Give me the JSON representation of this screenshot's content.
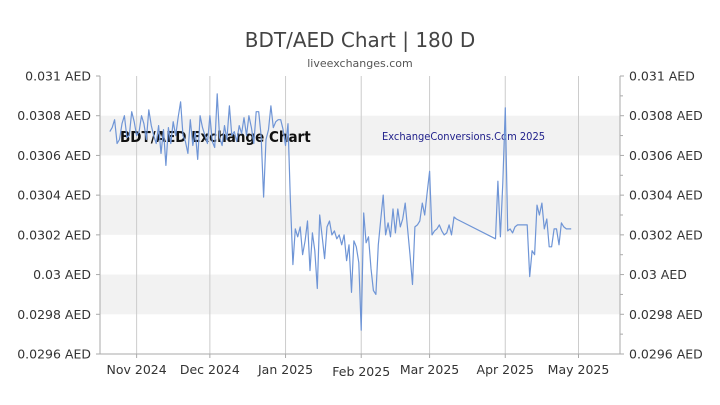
{
  "chart_data": {
    "type": "line",
    "title": "BDT/AED Chart | 180 D",
    "subtitle": "liveexchanges.com",
    "watermark_left": "BDT/AED Exchange Chart",
    "watermark_right": "ExchangeConversions.Com 2025",
    "ylim": [
      0.0296,
      0.031
    ],
    "y_ticks": [
      0.031,
      0.0308,
      0.0306,
      0.0304,
      0.0302,
      0.03,
      0.0298,
      0.0296
    ],
    "y_tick_labels": [
      "0.031 AED",
      "0.0308 AED",
      "0.0306 AED",
      "0.0304 AED",
      "0.0302 AED",
      "0.03 AED",
      "0.0298 AED",
      "0.0296 AED"
    ],
    "x_range": [
      "2024-10-17",
      "2025-05-18"
    ],
    "x_ticks": [
      {
        "label": "Nov 2024",
        "date": "2024-11-01"
      },
      {
        "label": "Dec 2024",
        "date": "2024-12-01"
      },
      {
        "label": "Jan 2025",
        "date": "2025-01-01"
      },
      {
        "label": "Feb 2025",
        "date": "2025-02-01"
      },
      {
        "label": "Mar 2025",
        "date": "2025-03-01"
      },
      {
        "label": "Apr 2025",
        "date": "2025-04-01"
      },
      {
        "label": "May 2025",
        "date": "2025-05-01"
      }
    ],
    "grid": "horizontal alternating bands, vertical month lines",
    "colors": {
      "line": "#6f95d6",
      "band": "#f2f2f2",
      "grid": "#cccccc",
      "axis": "#aaaaaa"
    },
    "series": [
      {
        "values": [
          [
            "2024-10-21",
            0.03072
          ],
          [
            "2024-10-22",
            0.03074
          ],
          [
            "2024-10-23",
            0.03078
          ],
          [
            "2024-10-24",
            0.03066
          ],
          [
            "2024-10-25",
            0.03068
          ],
          [
            "2024-10-26",
            0.03076
          ],
          [
            "2024-10-27",
            0.0308
          ],
          [
            "2024-10-28",
            0.03069
          ],
          [
            "2024-10-29",
            0.0307
          ],
          [
            "2024-10-30",
            0.03082
          ],
          [
            "2024-10-31",
            0.03077
          ],
          [
            "2024-11-01",
            0.0307
          ],
          [
            "2024-11-02",
            0.03072
          ],
          [
            "2024-11-03",
            0.0308
          ],
          [
            "2024-11-04",
            0.03076
          ],
          [
            "2024-11-05",
            0.03068
          ],
          [
            "2024-11-06",
            0.03083
          ],
          [
            "2024-11-07",
            0.03075
          ],
          [
            "2024-11-08",
            0.0307
          ],
          [
            "2024-11-09",
            0.03066
          ],
          [
            "2024-11-10",
            0.03075
          ],
          [
            "2024-11-11",
            0.03061
          ],
          [
            "2024-11-12",
            0.03073
          ],
          [
            "2024-11-13",
            0.03055
          ],
          [
            "2024-11-14",
            0.03074
          ],
          [
            "2024-11-15",
            0.03066
          ],
          [
            "2024-11-16",
            0.03077
          ],
          [
            "2024-11-17",
            0.0307
          ],
          [
            "2024-11-18",
            0.03079
          ],
          [
            "2024-11-19",
            0.03087
          ],
          [
            "2024-11-20",
            0.0307
          ],
          [
            "2024-11-21",
            0.03067
          ],
          [
            "2024-11-22",
            0.03061
          ],
          [
            "2024-11-23",
            0.03078
          ],
          [
            "2024-11-24",
            0.03065
          ],
          [
            "2024-11-25",
            0.03072
          ],
          [
            "2024-11-26",
            0.03058
          ],
          [
            "2024-11-27",
            0.0308
          ],
          [
            "2024-11-28",
            0.03074
          ],
          [
            "2024-11-29",
            0.0307
          ],
          [
            "2024-11-30",
            0.03066
          ],
          [
            "2024-12-01",
            0.0308
          ],
          [
            "2024-12-02",
            0.03067
          ],
          [
            "2024-12-03",
            0.03064
          ],
          [
            "2024-12-04",
            0.03091
          ],
          [
            "2024-12-05",
            0.03069
          ],
          [
            "2024-12-06",
            0.03065
          ],
          [
            "2024-12-07",
            0.03075
          ],
          [
            "2024-12-08",
            0.03068
          ],
          [
            "2024-12-09",
            0.03085
          ],
          [
            "2024-12-10",
            0.0307
          ],
          [
            "2024-12-11",
            0.03072
          ],
          [
            "2024-12-12",
            0.03067
          ],
          [
            "2024-12-13",
            0.03075
          ],
          [
            "2024-12-14",
            0.03071
          ],
          [
            "2024-12-15",
            0.03079
          ],
          [
            "2024-12-16",
            0.0307
          ],
          [
            "2024-12-17",
            0.0308
          ],
          [
            "2024-12-18",
            0.03074
          ],
          [
            "2024-12-19",
            0.03066
          ],
          [
            "2024-12-20",
            0.03082
          ],
          [
            "2024-12-21",
            0.03082
          ],
          [
            "2024-12-22",
            0.0307
          ],
          [
            "2024-12-23",
            0.03039
          ],
          [
            "2024-12-24",
            0.03068
          ],
          [
            "2024-12-25",
            0.03073
          ],
          [
            "2024-12-26",
            0.03085
          ],
          [
            "2024-12-27",
            0.03074
          ],
          [
            "2024-12-28",
            0.03077
          ],
          [
            "2024-12-29",
            0.03078
          ],
          [
            "2024-12-30",
            0.03078
          ],
          [
            "2024-12-31",
            0.03073
          ],
          [
            "2025-01-01",
            0.03065
          ],
          [
            "2025-01-02",
            0.03076
          ],
          [
            "2025-01-03",
            0.03037
          ],
          [
            "2025-01-04",
            0.03005
          ],
          [
            "2025-01-05",
            0.03023
          ],
          [
            "2025-01-06",
            0.03019
          ],
          [
            "2025-01-07",
            0.03024
          ],
          [
            "2025-01-08",
            0.0301
          ],
          [
            "2025-01-09",
            0.03017
          ],
          [
            "2025-01-10",
            0.03027
          ],
          [
            "2025-01-11",
            0.03002
          ],
          [
            "2025-01-12",
            0.03021
          ],
          [
            "2025-01-13",
            0.03012
          ],
          [
            "2025-01-14",
            0.02993
          ],
          [
            "2025-01-15",
            0.0303
          ],
          [
            "2025-01-16",
            0.03019
          ],
          [
            "2025-01-17",
            0.03008
          ],
          [
            "2025-01-18",
            0.03024
          ],
          [
            "2025-01-19",
            0.03027
          ],
          [
            "2025-01-20",
            0.0302
          ],
          [
            "2025-01-21",
            0.03022
          ],
          [
            "2025-01-22",
            0.03018
          ],
          [
            "2025-01-23",
            0.0302
          ],
          [
            "2025-01-24",
            0.03015
          ],
          [
            "2025-01-25",
            0.0302
          ],
          [
            "2025-01-26",
            0.03007
          ],
          [
            "2025-01-27",
            0.03015
          ],
          [
            "2025-01-28",
            0.02991
          ],
          [
            "2025-01-29",
            0.03017
          ],
          [
            "2025-01-30",
            0.03014
          ],
          [
            "2025-01-31",
            0.03006
          ],
          [
            "2025-02-01",
            0.02972
          ],
          [
            "2025-02-02",
            0.03031
          ],
          [
            "2025-02-03",
            0.03016
          ],
          [
            "2025-02-04",
            0.03019
          ],
          [
            "2025-02-05",
            0.03003
          ],
          [
            "2025-02-06",
            0.02992
          ],
          [
            "2025-02-07",
            0.0299
          ],
          [
            "2025-02-08",
            0.03015
          ],
          [
            "2025-02-09",
            0.03028
          ],
          [
            "2025-02-10",
            0.0304
          ],
          [
            "2025-02-11",
            0.0302
          ],
          [
            "2025-02-12",
            0.03026
          ],
          [
            "2025-02-13",
            0.03019
          ],
          [
            "2025-02-14",
            0.03033
          ],
          [
            "2025-02-15",
            0.03021
          ],
          [
            "2025-02-16",
            0.03033
          ],
          [
            "2025-02-17",
            0.03024
          ],
          [
            "2025-02-18",
            0.03028
          ],
          [
            "2025-02-19",
            0.03036
          ],
          [
            "2025-02-20",
            0.03023
          ],
          [
            "2025-02-21",
            0.0301
          ],
          [
            "2025-02-22",
            0.02995
          ],
          [
            "2025-02-23",
            0.03024
          ],
          [
            "2025-02-24",
            0.03025
          ],
          [
            "2025-02-25",
            0.03027
          ],
          [
            "2025-02-26",
            0.03036
          ],
          [
            "2025-02-27",
            0.0303
          ],
          [
            "2025-02-28",
            0.03041
          ],
          [
            "2025-03-01",
            0.03052
          ],
          [
            "2025-03-02",
            0.0302
          ],
          [
            "2025-03-03",
            0.03022
          ],
          [
            "2025-03-04",
            0.03023
          ],
          [
            "2025-03-05",
            0.03025
          ],
          [
            "2025-03-06",
            0.03022
          ],
          [
            "2025-03-07",
            0.0302
          ],
          [
            "2025-03-08",
            0.03021
          ],
          [
            "2025-03-09",
            0.03025
          ],
          [
            "2025-03-10",
            0.0302
          ],
          [
            "2025-03-11",
            0.03029
          ],
          [
            "2025-03-12",
            0.03028
          ],
          [
            "2025-03-28",
            0.03018
          ],
          [
            "2025-03-29",
            0.03047
          ],
          [
            "2025-03-30",
            0.03019
          ],
          [
            "2025-03-31",
            0.03046
          ],
          [
            "2025-04-01",
            0.03084
          ],
          [
            "2025-04-02",
            0.03022
          ],
          [
            "2025-04-03",
            0.03023
          ],
          [
            "2025-04-04",
            0.03021
          ],
          [
            "2025-04-05",
            0.03024
          ],
          [
            "2025-04-06",
            0.03025
          ],
          [
            "2025-04-07",
            0.03025
          ],
          [
            "2025-04-08",
            0.03025
          ],
          [
            "2025-04-09",
            0.03025
          ],
          [
            "2025-04-10",
            0.03025
          ],
          [
            "2025-04-11",
            0.02999
          ],
          [
            "2025-04-12",
            0.03012
          ],
          [
            "2025-04-13",
            0.0301
          ],
          [
            "2025-04-14",
            0.03035
          ],
          [
            "2025-04-15",
            0.0303
          ],
          [
            "2025-04-16",
            0.03036
          ],
          [
            "2025-04-17",
            0.03023
          ],
          [
            "2025-04-18",
            0.03028
          ],
          [
            "2025-04-19",
            0.03014
          ],
          [
            "2025-04-20",
            0.03014
          ],
          [
            "2025-04-21",
            0.03023
          ],
          [
            "2025-04-22",
            0.03023
          ],
          [
            "2025-04-23",
            0.03015
          ],
          [
            "2025-04-24",
            0.03026
          ],
          [
            "2025-04-25",
            0.03024
          ],
          [
            "2025-04-26",
            0.03023
          ],
          [
            "2025-04-27",
            0.03023
          ],
          [
            "2025-04-28",
            0.03023
          ]
        ]
      }
    ]
  }
}
